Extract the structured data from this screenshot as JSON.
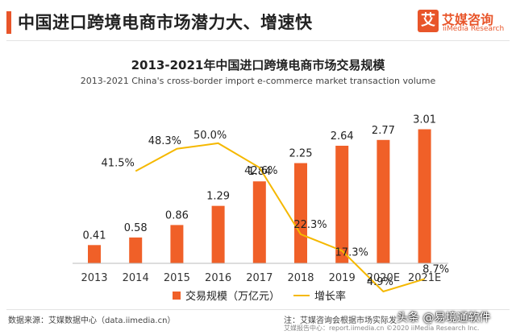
{
  "header": {
    "title": "中国进口跨境电商市场潜力大、增速快",
    "logo_mark": "艾",
    "logo_cn": "艾媒咨询",
    "logo_en": "iiMedia Research"
  },
  "chart_data": {
    "type": "bar",
    "title": "2013-2021年中国进口跨境电商市场交易规模",
    "subtitle": "2013-2021 China's cross-border import e-commerce market transaction volume",
    "categories": [
      "2013",
      "2014",
      "2015",
      "2016",
      "2017",
      "2018",
      "2019",
      "2020E",
      "2021E"
    ],
    "series": [
      {
        "name": "交易规模（万亿元）",
        "type": "bar",
        "color": "#f06028",
        "values": [
          0.41,
          0.58,
          0.86,
          1.29,
          1.84,
          2.25,
          2.64,
          2.77,
          3.01
        ],
        "labels": [
          "0.41",
          "0.58",
          "0.86",
          "1.29",
          "1.84",
          "2.25",
          "2.64",
          "2.77",
          "3.01"
        ]
      },
      {
        "name": "增长率",
        "type": "line",
        "color": "#f5b800",
        "values": [
          null,
          41.5,
          48.3,
          50.0,
          42.6,
          22.3,
          17.3,
          4.9,
          8.7
        ],
        "labels": [
          "",
          "41.5%",
          "48.3%",
          "50.0%",
          "42.6%",
          "22.3%",
          "17.3%",
          "4.9%",
          "8.7%"
        ]
      }
    ],
    "ylim_bar": [
      0,
      3.2
    ],
    "ylim_line": [
      0,
      60
    ],
    "grid": false,
    "legend_position": "bottom"
  },
  "footer": {
    "source": "数据来源：艾媒数据中心（data.iimedia.cn）",
    "note": "注：艾媒咨询会根据市场实际发",
    "note2": "艾媒报告中心：report.iimedia.cn   ©2020  iiMedia Research Inc.",
    "watermark": "头条 @易境通软件"
  }
}
